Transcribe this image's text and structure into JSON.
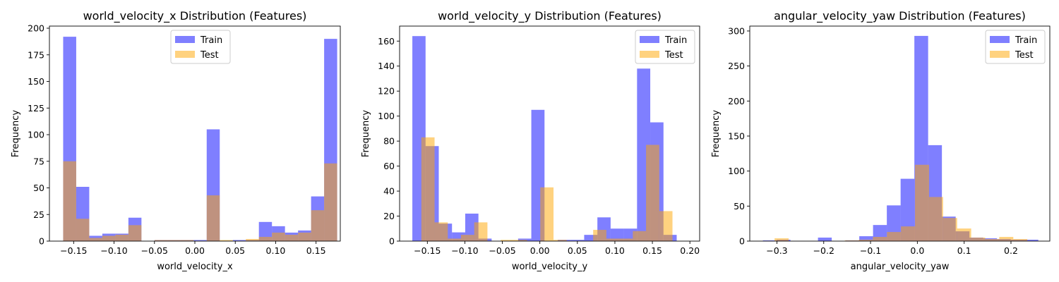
{
  "colors": {
    "train": "#0000ff",
    "test": "#ffa500",
    "bar_alpha": 0.5
  },
  "chart_data": [
    {
      "type": "histogram",
      "title": "world_velocity_x Distribution (Features)",
      "xlabel": "world_velocity_x",
      "ylabel": "Frequency",
      "xlim": [
        -0.18,
        0.18
      ],
      "ylim": [
        0,
        202
      ],
      "xticks": [
        -0.15,
        -0.1,
        -0.05,
        0.0,
        0.05,
        0.1,
        0.15
      ],
      "xtick_labels": [
        "−0.15",
        "−0.10",
        "−0.05",
        "0.00",
        "0.05",
        "0.10",
        "0.15"
      ],
      "yticks": [
        0,
        25,
        50,
        75,
        100,
        125,
        150,
        175,
        200
      ],
      "ytick_labels": [
        "0",
        "25",
        "50",
        "75",
        "100",
        "125",
        "150",
        "175",
        "200"
      ],
      "legend": {
        "position": "top-center",
        "entries": [
          "Train",
          "Test"
        ]
      },
      "series": [
        {
          "name": "Train",
          "bin_start": -0.163,
          "bin_width": 0.01615,
          "counts": [
            192,
            51,
            5,
            7,
            7,
            22,
            0,
            1,
            1,
            1,
            1,
            105,
            0,
            1,
            1,
            18,
            14,
            8,
            10,
            42,
            190
          ]
        },
        {
          "name": "Test",
          "bin_start": -0.163,
          "bin_width": 0.01615,
          "counts": [
            75,
            21,
            3,
            5,
            6,
            15,
            0,
            1,
            1,
            1,
            0,
            43,
            1,
            0,
            2,
            4,
            8,
            6,
            8,
            29,
            73
          ]
        }
      ]
    },
    {
      "type": "histogram",
      "title": "world_velocity_y Distribution (Features)",
      "xlabel": "world_velocity_y",
      "ylabel": "Frequency",
      "xlim": [
        -0.187,
        0.213
      ],
      "ylim": [
        0,
        172
      ],
      "xticks": [
        -0.15,
        -0.1,
        -0.05,
        0.0,
        0.05,
        0.1,
        0.15,
        0.2
      ],
      "xtick_labels": [
        "−0.15",
        "−0.10",
        "−0.05",
        "0.00",
        "0.05",
        "0.10",
        "0.15",
        "0.20"
      ],
      "yticks": [
        0,
        20,
        40,
        60,
        80,
        100,
        120,
        140,
        160
      ],
      "ytick_labels": [
        "0",
        "20",
        "40",
        "60",
        "80",
        "100",
        "120",
        "140",
        "160"
      ],
      "legend": {
        "position": "top-right",
        "entries": [
          "Train",
          "Test"
        ]
      },
      "series": [
        {
          "name": "Train",
          "bin_start": -0.17,
          "bin_width": 0.01762,
          "counts": [
            164,
            76,
            14,
            7,
            22,
            2,
            0,
            0,
            2,
            105,
            0,
            1,
            1,
            5,
            19,
            10,
            10,
            138,
            95,
            5
          ]
        },
        {
          "name": "Test",
          "bin_start": -0.158,
          "bin_width": 0.01762,
          "counts": [
            83,
            15,
            2,
            5,
            15,
            0,
            1,
            1,
            0,
            43,
            1,
            0,
            0,
            9,
            2,
            2,
            8,
            77,
            24
          ]
        }
      ]
    },
    {
      "type": "histogram",
      "title": "angular_velocity_yaw Distribution (Features)",
      "xlabel": "angular_velocity_yaw",
      "ylabel": "Frequency",
      "xlim": [
        -0.358,
        0.283
      ],
      "ylim": [
        0,
        307
      ],
      "xticks": [
        -0.3,
        -0.2,
        -0.1,
        0.0,
        0.1,
        0.2
      ],
      "xtick_labels": [
        "−0.3",
        "−0.2",
        "−0.1",
        "0.0",
        "0.1",
        "0.2"
      ],
      "yticks": [
        0,
        50,
        100,
        150,
        200,
        250,
        300
      ],
      "ytick_labels": [
        "0",
        "50",
        "100",
        "150",
        "200",
        "250",
        "300"
      ],
      "legend": {
        "position": "top-right",
        "entries": [
          "Train",
          "Test"
        ]
      },
      "series": [
        {
          "name": "Train",
          "bin_start": -0.33,
          "bin_width": 0.02942,
          "counts": [
            1,
            2,
            0,
            0,
            5,
            0,
            1,
            7,
            23,
            51,
            89,
            293,
            137,
            35,
            14,
            5,
            4,
            3,
            2,
            2
          ]
        },
        {
          "name": "Test",
          "bin_start": -0.305,
          "bin_width": 0.03,
          "counts": [
            4,
            0,
            0,
            0,
            0,
            1,
            2,
            6,
            13,
            21,
            109,
            63,
            33,
            18,
            5,
            3,
            6,
            3
          ]
        }
      ]
    }
  ]
}
